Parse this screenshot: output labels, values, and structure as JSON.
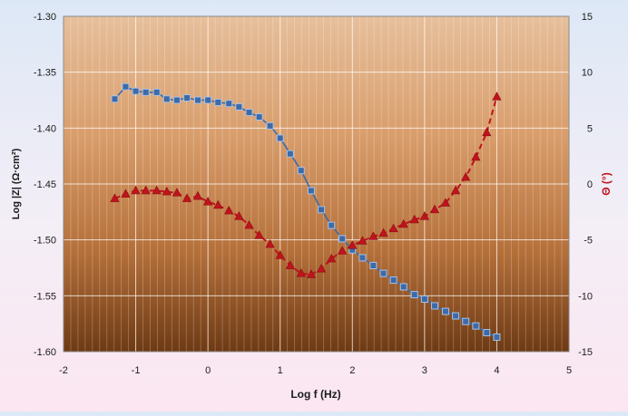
{
  "chart_data": {
    "type": "scatter",
    "title": "",
    "xlabel": "Log f (Hz)",
    "ylabel_left": "Log |Z| (Ω·cm²)",
    "ylabel_right": "Θ (°)",
    "xlim": [
      -2,
      5
    ],
    "ylim_left": [
      -1.6,
      -1.3
    ],
    "ylim_right": [
      -15,
      15
    ],
    "x_ticks": [
      "-2",
      "-1",
      "0",
      "1",
      "2",
      "3",
      "4",
      "5"
    ],
    "y_left_ticks": [
      "-1.60",
      "-1.55",
      "-1.50",
      "-1.45",
      "-1.40",
      "-1.35",
      "-1.30"
    ],
    "y_right_ticks": [
      "-15",
      "-10",
      "-5",
      "0",
      "5",
      "10",
      "15"
    ],
    "grid": true,
    "legend": "none",
    "series": [
      {
        "axis": "left",
        "marker": "square",
        "line": "solid",
        "color": "#3d6aa8",
        "x": [
          -1.29,
          -1.14,
          -1.0,
          -0.86,
          -0.71,
          -0.57,
          -0.43,
          -0.29,
          -0.14,
          0.0,
          0.14,
          0.29,
          0.43,
          0.57,
          0.71,
          0.86,
          1.0,
          1.14,
          1.29,
          1.43,
          1.57,
          1.71,
          1.86,
          2.0,
          2.14,
          2.29,
          2.43,
          2.57,
          2.71,
          2.86,
          3.0,
          3.14,
          3.29,
          3.43,
          3.57,
          3.71,
          3.86,
          4.0
        ],
        "y": [
          -1.374,
          -1.363,
          -1.367,
          -1.368,
          -1.368,
          -1.374,
          -1.375,
          -1.373,
          -1.375,
          -1.375,
          -1.377,
          -1.378,
          -1.381,
          -1.386,
          -1.39,
          -1.398,
          -1.409,
          -1.423,
          -1.438,
          -1.456,
          -1.473,
          -1.487,
          -1.499,
          -1.509,
          -1.516,
          -1.523,
          -1.53,
          -1.536,
          -1.542,
          -1.549,
          -1.553,
          -1.559,
          -1.564,
          -1.568,
          -1.573,
          -1.577,
          -1.583,
          -1.587
        ]
      },
      {
        "axis": "right",
        "marker": "triangle",
        "line": "dashed",
        "color": "#c0141c",
        "x": [
          -1.29,
          -1.14,
          -1.0,
          -0.86,
          -0.71,
          -0.57,
          -0.43,
          -0.29,
          -0.14,
          0.0,
          0.14,
          0.29,
          0.43,
          0.57,
          0.71,
          0.86,
          1.0,
          1.14,
          1.29,
          1.43,
          1.57,
          1.71,
          1.86,
          2.0,
          2.14,
          2.29,
          2.43,
          2.57,
          2.71,
          2.86,
          3.0,
          3.14,
          3.29,
          3.43,
          3.57,
          3.71,
          3.86,
          4.0
        ],
        "y": [
          -1.3,
          -0.9,
          -0.6,
          -0.6,
          -0.6,
          -0.7,
          -0.8,
          -1.3,
          -1.1,
          -1.6,
          -1.9,
          -2.4,
          -2.9,
          -3.7,
          -4.6,
          -5.4,
          -6.4,
          -7.3,
          -8.0,
          -8.1,
          -7.6,
          -6.7,
          -6.0,
          -5.5,
          -5.1,
          -4.7,
          -4.4,
          -4.0,
          -3.6,
          -3.2,
          -2.9,
          -2.3,
          -1.7,
          -0.6,
          0.6,
          2.4,
          4.6,
          7.8
        ]
      }
    ]
  }
}
